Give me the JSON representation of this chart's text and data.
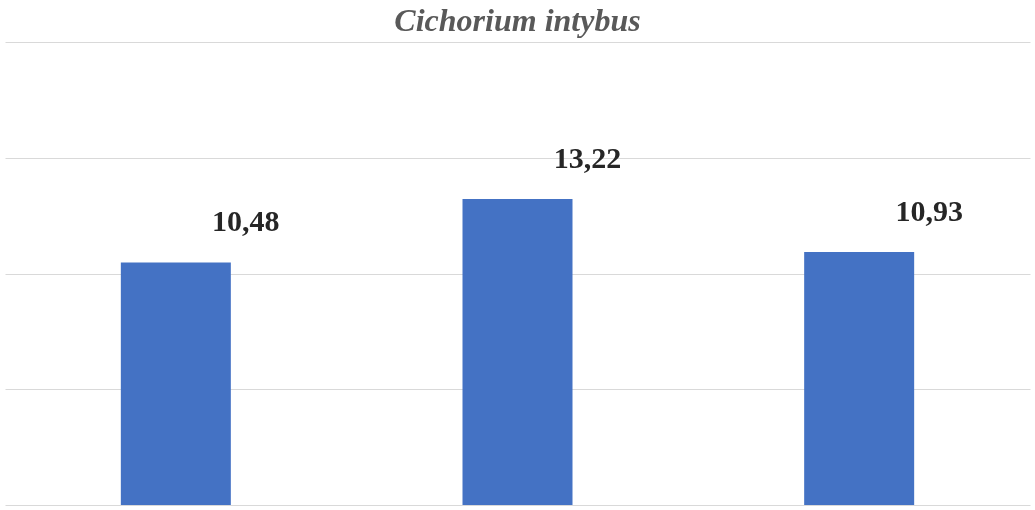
{
  "chart_data": {
    "type": "bar",
    "title": "Cichorium intybus",
    "categories": [
      null,
      null,
      null
    ],
    "values": [
      10.48,
      13.22,
      10.93
    ],
    "value_labels": [
      "10,48",
      "13,22",
      "10,93"
    ],
    "color": "#4472c4",
    "ylim": [
      0,
      20
    ],
    "yticks": [
      {
        "value": 0,
        "label": null
      },
      {
        "value": 5,
        "label": null
      },
      {
        "value": 10,
        "label": null
      },
      {
        "value": 15,
        "label": null
      },
      {
        "value": 20,
        "label": null
      }
    ],
    "grid": "y",
    "tick_labels": false
  }
}
